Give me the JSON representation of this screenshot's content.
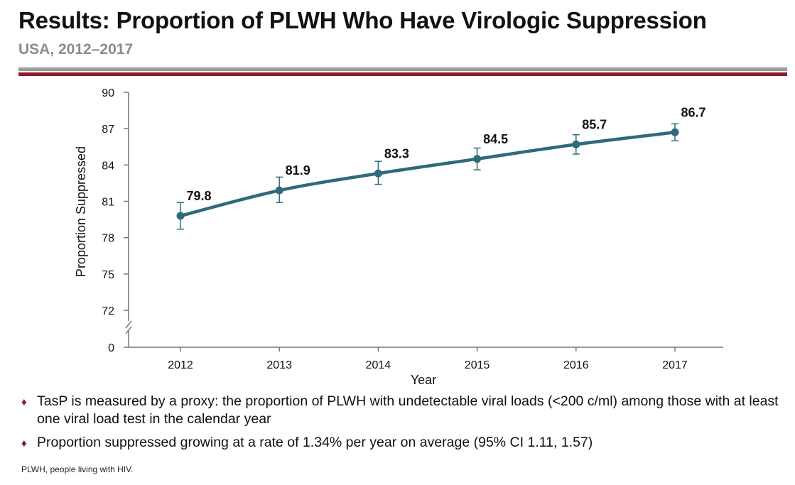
{
  "header": {
    "title": "Results: Proportion of PLWH Who Have Virologic Suppression",
    "subtitle": "USA, 2012–2017"
  },
  "colors": {
    "rule_gray": "#9b9b9b",
    "rule_red": "#8b1a2b",
    "line": "#2e6b7a",
    "bullet": "#8b1a2b",
    "subtitle": "#8c8c8c"
  },
  "chart_data": {
    "type": "line",
    "title": "",
    "xlabel": "Year",
    "ylabel": "Proportion Suppressed",
    "x": [
      "2012",
      "2013",
      "2014",
      "2015",
      "2016",
      "2017"
    ],
    "series": [
      {
        "values": [
          79.8,
          81.9,
          83.3,
          84.5,
          85.7,
          86.7
        ],
        "error_low": [
          78.7,
          80.9,
          82.4,
          83.6,
          84.9,
          86.0
        ],
        "error_high": [
          80.9,
          83.0,
          84.3,
          85.4,
          86.5,
          87.4
        ]
      }
    ],
    "data_labels": [
      "79.8",
      "81.9",
      "83.3",
      "84.5",
      "85.7",
      "86.7"
    ],
    "yticks": [
      "0",
      "72",
      "75",
      "78",
      "81",
      "84",
      "87",
      "90"
    ],
    "ylim": [
      72,
      90
    ],
    "y_axis_break": true,
    "grid": false,
    "legend": "none"
  },
  "bullets": [
    "TasP is measured by a  proxy: the proportion of PLWH with undetectable viral loads (<200 c/ml) among those with at least one viral load test in the calendar year",
    "Proportion suppressed growing at a rate of 1.34% per year on average (95% CI 1.11, 1.57)"
  ],
  "footnote": "PLWH, people living with HIV."
}
